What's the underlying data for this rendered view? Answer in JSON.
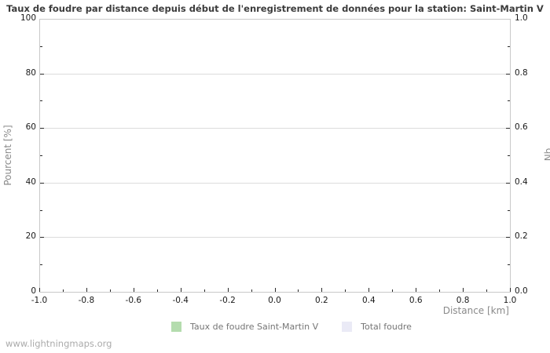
{
  "page": {
    "footer": "www.lightningmaps.org"
  },
  "chart_data": {
    "type": "bar",
    "title": "Taux de foudre par distance depuis début de l'enregistrement de données pour la station: Saint-Martin V",
    "xlabel": "Distance  [km]",
    "ylabel_left": "Pourcent  [%]",
    "ylabel_right": "Nb",
    "xlim": [
      -1.0,
      1.0
    ],
    "ylim_left": [
      0,
      100
    ],
    "ylim_right": [
      0.0,
      1.0
    ],
    "x_tick_labels": [
      "-1.0",
      "-0.8",
      "-0.6",
      "-0.4",
      "-0.2",
      "0.0",
      "0.2",
      "0.4",
      "0.6",
      "0.8",
      "1.0"
    ],
    "y_tick_labels_left": [
      "0",
      "20",
      "40",
      "60",
      "80",
      "100"
    ],
    "y_tick_labels_right": [
      "0.0",
      "0.2",
      "0.4",
      "0.6",
      "0.8",
      "1.0"
    ],
    "grid": "horizontal-only",
    "legend_position": "bottom-center",
    "legend": [
      {
        "label": "Taux de foudre Saint-Martin V",
        "color": "#b4dcae"
      },
      {
        "label": "Total foudre",
        "color": "#eaeaf6"
      }
    ],
    "series": [
      {
        "name": "Taux de foudre Saint-Martin V",
        "color": "#b4dcae",
        "values": []
      },
      {
        "name": "Total foudre",
        "color": "#eaeaf6",
        "values": []
      }
    ]
  },
  "colors": {
    "frame": "#c9c9c9",
    "gridline": "#dcdcdc",
    "tick_mark": "#2b2b2b",
    "tick_label": "#1a1a1a",
    "title_text": "#3c3c3c",
    "axis_label_text": "#8a8a8a",
    "legend_text": "#757575",
    "footer_text": "#ababab",
    "background": "#ffffff"
  }
}
